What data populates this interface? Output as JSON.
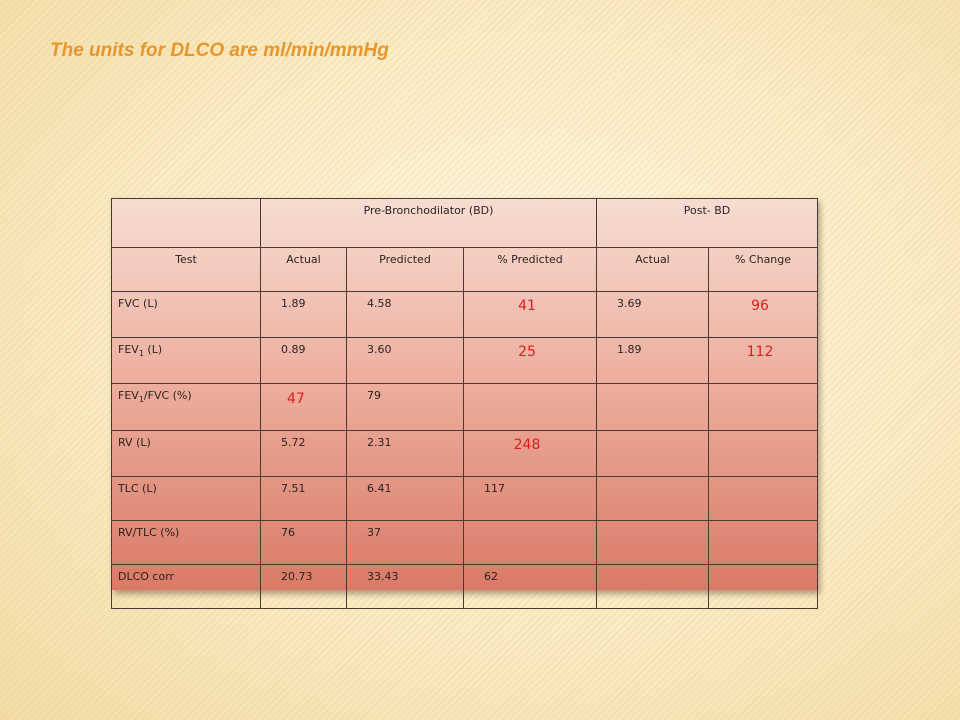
{
  "slide": {
    "title": "The units for DLCO are ml/min/mmHg"
  },
  "table": {
    "group_headers": {
      "blank": "",
      "pre": "Pre-Bronchodilator (BD)",
      "post": "Post- BD"
    },
    "columns": [
      "Test",
      "Actual",
      "Predicted",
      "% Predicted",
      "Actual",
      "% Change"
    ],
    "rows": [
      {
        "test_main": "FVC (L)",
        "test_sub": "",
        "test_tail": "",
        "actual": "1.89",
        "predicted": "4.58",
        "pct_predicted": "41",
        "post_actual": "3.69",
        "pct_change": "96"
      },
      {
        "test_main": "FEV",
        "test_sub": "1",
        "test_tail": " (L)",
        "actual": "0.89",
        "predicted": "3.60",
        "pct_predicted": "25",
        "post_actual": "1.89",
        "pct_change": "112"
      },
      {
        "test_main": "FEV",
        "test_sub": "1",
        "test_tail": "/FVC (%)",
        "actual": "47",
        "predicted": "79",
        "pct_predicted": "",
        "post_actual": "",
        "pct_change": ""
      },
      {
        "test_main": "RV (L)",
        "test_sub": "",
        "test_tail": "",
        "actual": "5.72",
        "predicted": "2.31",
        "pct_predicted": "248",
        "post_actual": "",
        "pct_change": ""
      },
      {
        "test_main": "TLC (L)",
        "test_sub": "",
        "test_tail": "",
        "actual": "7.51",
        "predicted": "6.41",
        "pct_predicted": "117",
        "post_actual": "",
        "pct_change": ""
      },
      {
        "test_main": "RV/TLC (%)",
        "test_sub": "",
        "test_tail": "",
        "actual": "76",
        "predicted": "37",
        "pct_predicted": "",
        "post_actual": "",
        "pct_change": ""
      },
      {
        "test_main": "DLCO corr",
        "test_sub": "",
        "test_tail": "",
        "actual": "20.73",
        "predicted": "33.43",
        "pct_predicted": "62",
        "post_actual": "",
        "pct_change": ""
      }
    ],
    "highlight_color": "#e01c1c"
  }
}
